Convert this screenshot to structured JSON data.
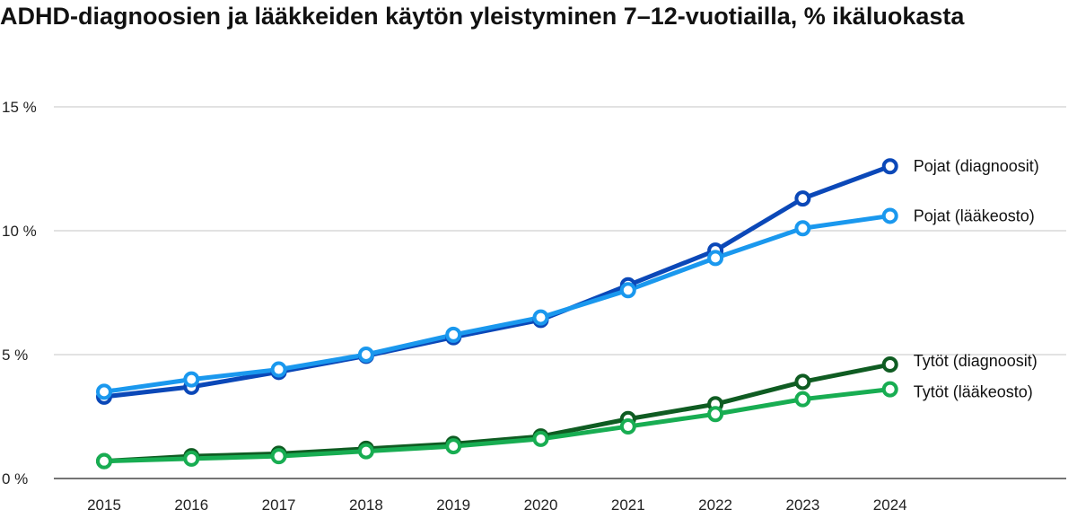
{
  "chart_data": {
    "type": "line",
    "title": "ADHD-diagnoosien ja lääkkeiden käytön yleistyminen 7–12-vuotiailla, % ikäluokasta",
    "x": [
      "2015",
      "2016",
      "2017",
      "2018",
      "2019",
      "2020",
      "2021",
      "2022",
      "2023",
      "2024"
    ],
    "ylim": [
      0,
      15
    ],
    "yticks": [
      0,
      5,
      10,
      15
    ],
    "ytick_labels": [
      "0 %",
      "5 %",
      "10 %",
      "15 %"
    ],
    "grid": "horizontal",
    "series": [
      {
        "name": "Pojat (diagnoosit)",
        "color": "#0b48b8",
        "values": [
          3.3,
          3.7,
          4.3,
          4.95,
          5.7,
          6.4,
          7.8,
          9.2,
          11.3,
          12.6
        ]
      },
      {
        "name": "Pojat (lääkeosto)",
        "color": "#1a98ee",
        "values": [
          3.5,
          4.0,
          4.4,
          5.0,
          5.8,
          6.5,
          7.6,
          8.9,
          10.1,
          10.6
        ]
      },
      {
        "name": "Tytöt (diagnoosit)",
        "color": "#0f5c22",
        "values": [
          0.7,
          0.9,
          1.0,
          1.2,
          1.4,
          1.7,
          2.4,
          3.0,
          3.9,
          4.6
        ]
      },
      {
        "name": "Tytöt (lääkeosto)",
        "color": "#18ad52",
        "values": [
          0.7,
          0.8,
          0.9,
          1.1,
          1.3,
          1.6,
          2.1,
          2.6,
          3.2,
          3.6
        ]
      }
    ]
  }
}
